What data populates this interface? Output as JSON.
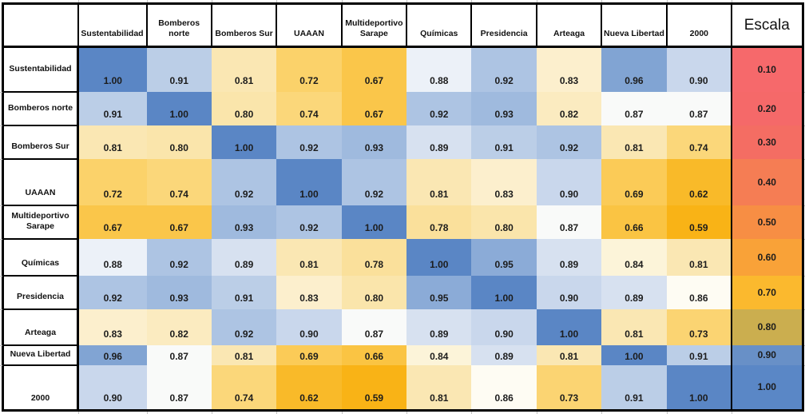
{
  "chart_data": {
    "type": "heatmap",
    "description": "Correlation matrix between monitoring stations with color scale legend",
    "categories": [
      "Sustentabilidad",
      "Bomberos norte",
      "Bomberos Sur",
      "UAAAN",
      "Multideportivo Sarape",
      "Químicas",
      "Presidencia",
      "Arteaga",
      "Nueva Libertad",
      "2000"
    ],
    "rows": [
      {
        "label": "Sustentabilidad",
        "values": [
          1.0,
          0.91,
          0.81,
          0.72,
          0.67,
          0.88,
          0.92,
          0.83,
          0.96,
          0.9
        ],
        "scale_label": "0.10",
        "scale_color": "#F6696B"
      },
      {
        "label": "Bomberos norte",
        "values": [
          0.91,
          1.0,
          0.8,
          0.74,
          0.67,
          0.92,
          0.93,
          0.82,
          0.87,
          0.87
        ],
        "scale_label": "0.20",
        "scale_color": "#F56969"
      },
      {
        "label": "Bomberos Sur",
        "values": [
          0.81,
          0.8,
          1.0,
          0.92,
          0.93,
          0.89,
          0.91,
          0.92,
          0.81,
          0.74
        ],
        "scale_label": "0.30",
        "scale_color": "#F46D63"
      },
      {
        "label": "UAAAN",
        "values": [
          0.72,
          0.74,
          0.92,
          1.0,
          0.92,
          0.81,
          0.83,
          0.9,
          0.69,
          0.62
        ],
        "scale_label": "0.40",
        "scale_color": "#F57D54"
      },
      {
        "label": "Multideportivo Sarape",
        "values": [
          0.67,
          0.67,
          0.93,
          0.92,
          1.0,
          0.78,
          0.8,
          0.87,
          0.66,
          0.59
        ],
        "scale_label": "0.50",
        "scale_color": "#F78E44"
      },
      {
        "label": "Químicas",
        "values": [
          0.88,
          0.92,
          0.89,
          0.81,
          0.78,
          1.0,
          0.95,
          0.89,
          0.84,
          0.81
        ],
        "scale_label": "0.60",
        "scale_color": "#F9A238"
      },
      {
        "label": "Presidencia",
        "values": [
          0.92,
          0.93,
          0.91,
          0.83,
          0.8,
          0.95,
          1.0,
          0.9,
          0.89,
          0.86
        ],
        "scale_label": "0.70",
        "scale_color": "#FBB92E"
      },
      {
        "label": "Arteaga",
        "values": [
          0.83,
          0.82,
          0.92,
          0.9,
          0.87,
          0.89,
          0.9,
          1.0,
          0.81,
          0.73
        ],
        "scale_label": "0.80",
        "scale_color": "#CBAE4F"
      },
      {
        "label": "Nueva Libertad",
        "values": [
          0.96,
          0.87,
          0.81,
          0.69,
          0.66,
          0.84,
          0.89,
          0.81,
          1.0,
          0.91
        ],
        "scale_label": "0.90",
        "scale_color": "#6890C7"
      },
      {
        "label": "2000",
        "values": [
          0.9,
          0.87,
          0.74,
          0.62,
          0.59,
          0.81,
          0.86,
          0.73,
          0.91,
          1.0
        ],
        "scale_label": "1.00",
        "scale_color": "#5A87C6"
      }
    ],
    "scale_header": "Escala",
    "scale_values": [
      "0.10",
      "0.20",
      "0.30",
      "0.40",
      "0.50",
      "0.60",
      "0.70",
      "0.80",
      "0.90",
      "1.00"
    ],
    "value_format": "0.00",
    "value_range": [
      0.59,
      1.0
    ],
    "colormap_stops": [
      [
        0.59,
        "#F9B316"
      ],
      [
        0.72,
        "#FBD26A"
      ],
      [
        0.81,
        "#FAE7B3"
      ],
      [
        0.86,
        "#FEFCF3"
      ],
      [
        0.875,
        "#F7F9FC"
      ],
      [
        0.89,
        "#D7E1F0"
      ],
      [
        0.93,
        "#9FBADE"
      ],
      [
        1.0,
        "#5A86C5"
      ]
    ],
    "colors": {
      "border": "#000000",
      "background": "#FFFFFF",
      "cell_text": "#1C1C1C",
      "gridline_tick": "#C2C2C2",
      "diagonal_blue": "#5A86C5",
      "low_orange": "#F9B316",
      "legend_red": "#F6696B"
    },
    "legend_position": "right column",
    "grid": false
  }
}
